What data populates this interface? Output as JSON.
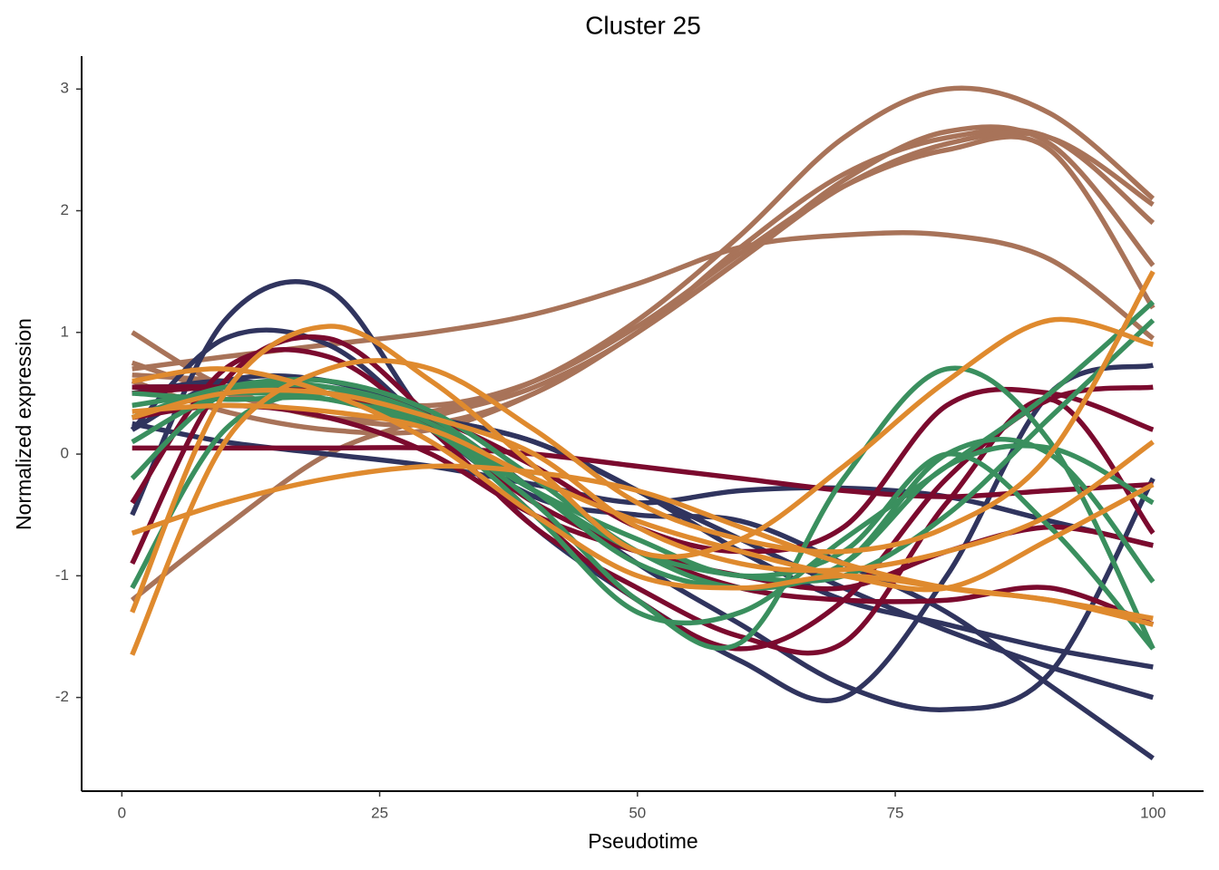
{
  "chart_data": {
    "type": "line",
    "title": "Cluster 25",
    "x_label": "Pseudotime",
    "y_label": "Normalized expression",
    "x": [
      1,
      10,
      20,
      30,
      40,
      50,
      60,
      70,
      80,
      90,
      100
    ],
    "xlim": [
      -3.9,
      104.9
    ],
    "ylim": [
      -2.77,
      3.27
    ],
    "xticks": [
      0,
      25,
      50,
      75,
      100
    ],
    "yticks": [
      -2,
      -1,
      0,
      1,
      2,
      3
    ],
    "series": [
      {
        "color": "#a87359",
        "values": [
          1.0,
          0.55,
          0.3,
          0.35,
          0.6,
          1.1,
          1.8,
          2.6,
          3.0,
          2.8,
          2.1
        ]
      },
      {
        "color": "#a87359",
        "values": [
          0.7,
          0.8,
          0.9,
          1.0,
          1.15,
          1.4,
          1.7,
          1.8,
          1.8,
          1.6,
          0.95
        ]
      },
      {
        "color": "#a87359",
        "values": [
          -1.2,
          -0.6,
          0.0,
          0.3,
          0.55,
          1.0,
          1.7,
          2.3,
          2.6,
          2.6,
          1.9
        ]
      },
      {
        "color": "#a87359",
        "values": [
          0.75,
          0.5,
          0.3,
          0.25,
          0.5,
          1.0,
          1.6,
          2.2,
          2.55,
          2.6,
          2.05
        ]
      },
      {
        "color": "#a87359",
        "values": [
          0.6,
          0.35,
          0.2,
          0.2,
          0.5,
          1.0,
          1.6,
          2.25,
          2.65,
          2.55,
          1.55
        ]
      },
      {
        "color": "#a87359",
        "values": [
          0.65,
          0.6,
          0.5,
          0.4,
          0.6,
          1.05,
          1.65,
          2.2,
          2.5,
          2.5,
          1.2
        ]
      },
      {
        "color": "#30345e",
        "values": [
          -0.5,
          1.1,
          1.35,
          0.25,
          -0.35,
          -0.5,
          -0.55,
          -0.9,
          -1.3,
          -1.9,
          -2.5
        ]
      },
      {
        "color": "#30345e",
        "values": [
          0.2,
          0.95,
          0.9,
          0.2,
          -0.6,
          -1.2,
          -1.7,
          -2.0,
          -1.0,
          0.5,
          0.73
        ]
      },
      {
        "color": "#30345e",
        "values": [
          0.2,
          0.6,
          0.6,
          0.3,
          -0.3,
          -0.9,
          -1.4,
          -1.9,
          -2.1,
          -1.8,
          -0.2
        ]
      },
      {
        "color": "#30345e",
        "values": [
          0.55,
          0.55,
          0.5,
          0.3,
          0.1,
          -0.3,
          -0.8,
          -1.2,
          -1.4,
          -1.6,
          -1.75
        ]
      },
      {
        "color": "#30345e",
        "values": [
          0.25,
          0.1,
          0.0,
          -0.1,
          -0.25,
          -0.4,
          -0.3,
          -0.28,
          -0.35,
          -0.55,
          -0.75
        ]
      },
      {
        "color": "#30345e",
        "values": [
          0.5,
          0.6,
          0.5,
          0.3,
          0.1,
          -0.3,
          -0.7,
          -1.1,
          -1.45,
          -1.75,
          -2.0
        ]
      },
      {
        "color": "#7b0a2e",
        "values": [
          0.05,
          0.05,
          0.05,
          0.05,
          0.0,
          -0.1,
          -0.2,
          -0.3,
          -0.35,
          -0.3,
          -0.25
        ]
      },
      {
        "color": "#7b0a2e",
        "values": [
          -0.9,
          0.6,
          0.95,
          0.3,
          -0.5,
          -1.2,
          -1.6,
          -1.2,
          -0.2,
          0.45,
          0.55
        ]
      },
      {
        "color": "#7b0a2e",
        "values": [
          -0.4,
          0.7,
          0.8,
          0.2,
          -0.6,
          -1.1,
          -1.5,
          -1.55,
          -0.4,
          0.45,
          -0.65
        ]
      },
      {
        "color": "#7b0a2e",
        "values": [
          0.5,
          0.55,
          0.5,
          0.3,
          -0.1,
          -0.6,
          -0.8,
          -0.6,
          0.4,
          0.5,
          0.2
        ]
      },
      {
        "color": "#7b0a2e",
        "values": [
          0.55,
          0.55,
          0.5,
          0.2,
          -0.4,
          -0.8,
          -1.1,
          -1.2,
          -1.2,
          -1.1,
          -1.4
        ]
      },
      {
        "color": "#7b0a2e",
        "values": [
          0.3,
          0.4,
          0.3,
          0.0,
          -0.5,
          -0.8,
          -1.0,
          -1.1,
          -0.8,
          -0.6,
          -0.75
        ]
      },
      {
        "color": "#3a8f5e",
        "values": [
          -1.1,
          0.2,
          0.5,
          0.2,
          -0.4,
          -1.2,
          -1.55,
          -0.2,
          0.7,
          0.1,
          -1.6
        ]
      },
      {
        "color": "#3a8f5e",
        "values": [
          -0.2,
          0.5,
          0.55,
          0.25,
          -0.3,
          -0.9,
          -1.1,
          -0.9,
          0.0,
          0.0,
          -1.05
        ]
      },
      {
        "color": "#3a8f5e",
        "values": [
          0.5,
          0.45,
          0.45,
          0.2,
          -0.5,
          -1.3,
          -1.3,
          -0.7,
          -0.1,
          0.5,
          1.25
        ]
      },
      {
        "color": "#3a8f5e",
        "values": [
          0.1,
          0.5,
          0.55,
          0.3,
          -0.3,
          -0.8,
          -1.0,
          -1.0,
          -0.5,
          0.3,
          1.1
        ]
      },
      {
        "color": "#3a8f5e",
        "values": [
          0.3,
          0.55,
          0.6,
          0.35,
          -0.2,
          -0.8,
          -1.1,
          -0.9,
          -0.1,
          0.05,
          -0.4
        ]
      },
      {
        "color": "#3a8f5e",
        "values": [
          0.4,
          0.5,
          0.45,
          0.2,
          -0.3,
          -0.7,
          -1.0,
          -0.8,
          0.0,
          -0.6,
          -1.6
        ]
      },
      {
        "color": "#df8a2e",
        "values": [
          -1.65,
          0.1,
          0.7,
          0.7,
          0.2,
          -0.4,
          -0.7,
          -0.8,
          -0.6,
          0.0,
          1.5
        ]
      },
      {
        "color": "#df8a2e",
        "values": [
          -1.3,
          0.5,
          1.05,
          0.6,
          -0.1,
          -0.8,
          -0.7,
          -0.1,
          0.6,
          1.1,
          0.9
        ]
      },
      {
        "color": "#df8a2e",
        "values": [
          -0.65,
          -0.4,
          -0.2,
          -0.1,
          -0.15,
          -0.3,
          -0.6,
          -0.9,
          -1.1,
          -1.2,
          -1.4
        ]
      },
      {
        "color": "#df8a2e",
        "values": [
          0.3,
          0.5,
          0.5,
          0.3,
          0.0,
          -0.6,
          -0.9,
          -0.95,
          -0.8,
          -0.5,
          0.1
        ]
      },
      {
        "color": "#df8a2e",
        "values": [
          0.6,
          0.7,
          0.5,
          0.1,
          -0.5,
          -1.0,
          -1.1,
          -1.0,
          -1.1,
          -1.2,
          -1.35
        ]
      },
      {
        "color": "#df8a2e",
        "values": [
          0.35,
          0.4,
          0.35,
          0.2,
          -0.2,
          -0.55,
          -0.8,
          -1.0,
          -1.1,
          -0.7,
          -0.25
        ]
      }
    ]
  }
}
